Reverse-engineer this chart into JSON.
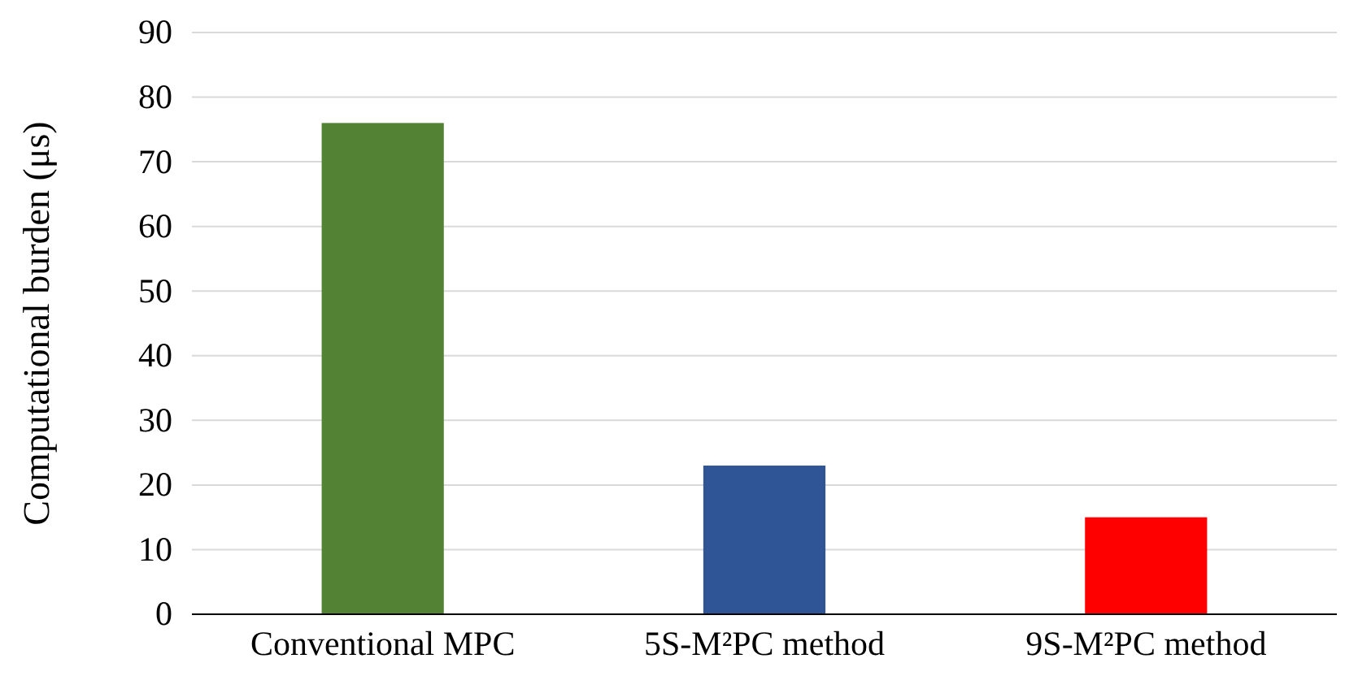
{
  "chart_data": {
    "type": "bar",
    "ylabel": "Computational burden (μs)",
    "categories": [
      "Conventional MPC",
      "5S-M²PC method",
      "9S-M²PC method"
    ],
    "values": [
      76,
      23,
      15
    ],
    "colors": [
      "#548235",
      "#2f5597",
      "#ff0000"
    ],
    "ylim": [
      0,
      90
    ],
    "yticks": [
      0,
      10,
      20,
      30,
      40,
      50,
      60,
      70,
      80,
      90
    ],
    "grid": "y"
  }
}
